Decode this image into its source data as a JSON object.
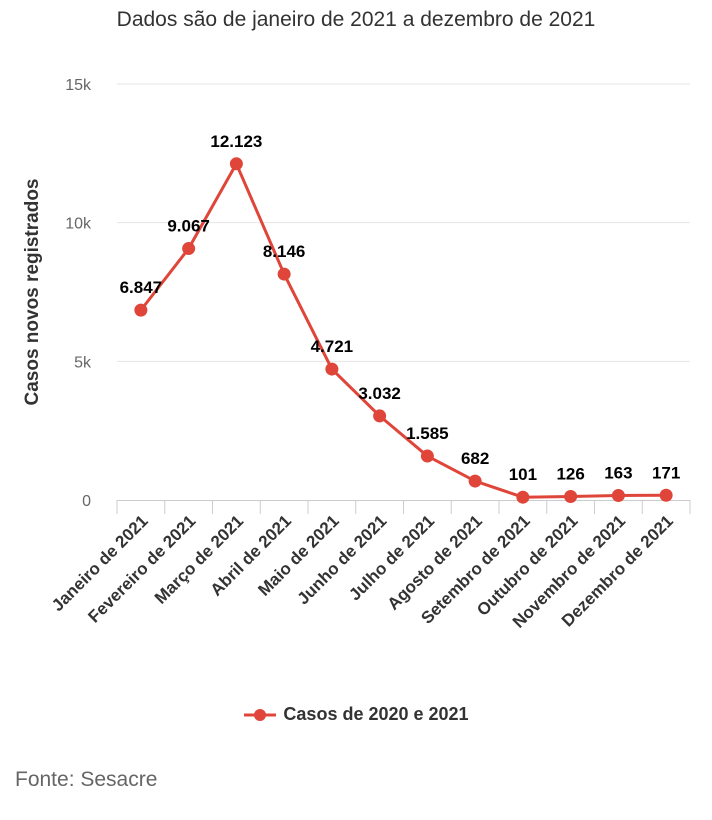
{
  "chart_data": {
    "type": "line",
    "title": "Dados são de janeiro de 2021 a dezembro de 2021",
    "ylabel": "Casos novos registrados",
    "xlabel": "",
    "categories": [
      "Janeiro de 2021",
      "Fevereiro de 2021",
      "Março de 2021",
      "Abril de 2021",
      "Maio de 2021",
      "Junho de 2021",
      "Julho de 2021",
      "Agosto de 2021",
      "Setembro de 2021",
      "Outubro de 2021",
      "Novembro de 2021",
      "Dezembro de 2021"
    ],
    "series": [
      {
        "name": "Casos de 2020 e 2021",
        "values": [
          6847,
          9067,
          12123,
          8146,
          4721,
          3032,
          1585,
          682,
          101,
          126,
          163,
          171
        ],
        "labels": [
          "6.847",
          "9.067",
          "12.123",
          "8.146",
          "4.721",
          "3.032",
          "1.585",
          "682",
          "101",
          "126",
          "163",
          "171"
        ]
      }
    ],
    "ylim": [
      0,
      15000
    ],
    "yticks": [
      0,
      5000,
      10000,
      15000
    ],
    "ytick_labels": [
      "0",
      "5k",
      "10k",
      "15k"
    ],
    "grid": true,
    "legend": "bottom-center",
    "color": "#e0453a"
  },
  "source": "Fonte: Sesacre"
}
